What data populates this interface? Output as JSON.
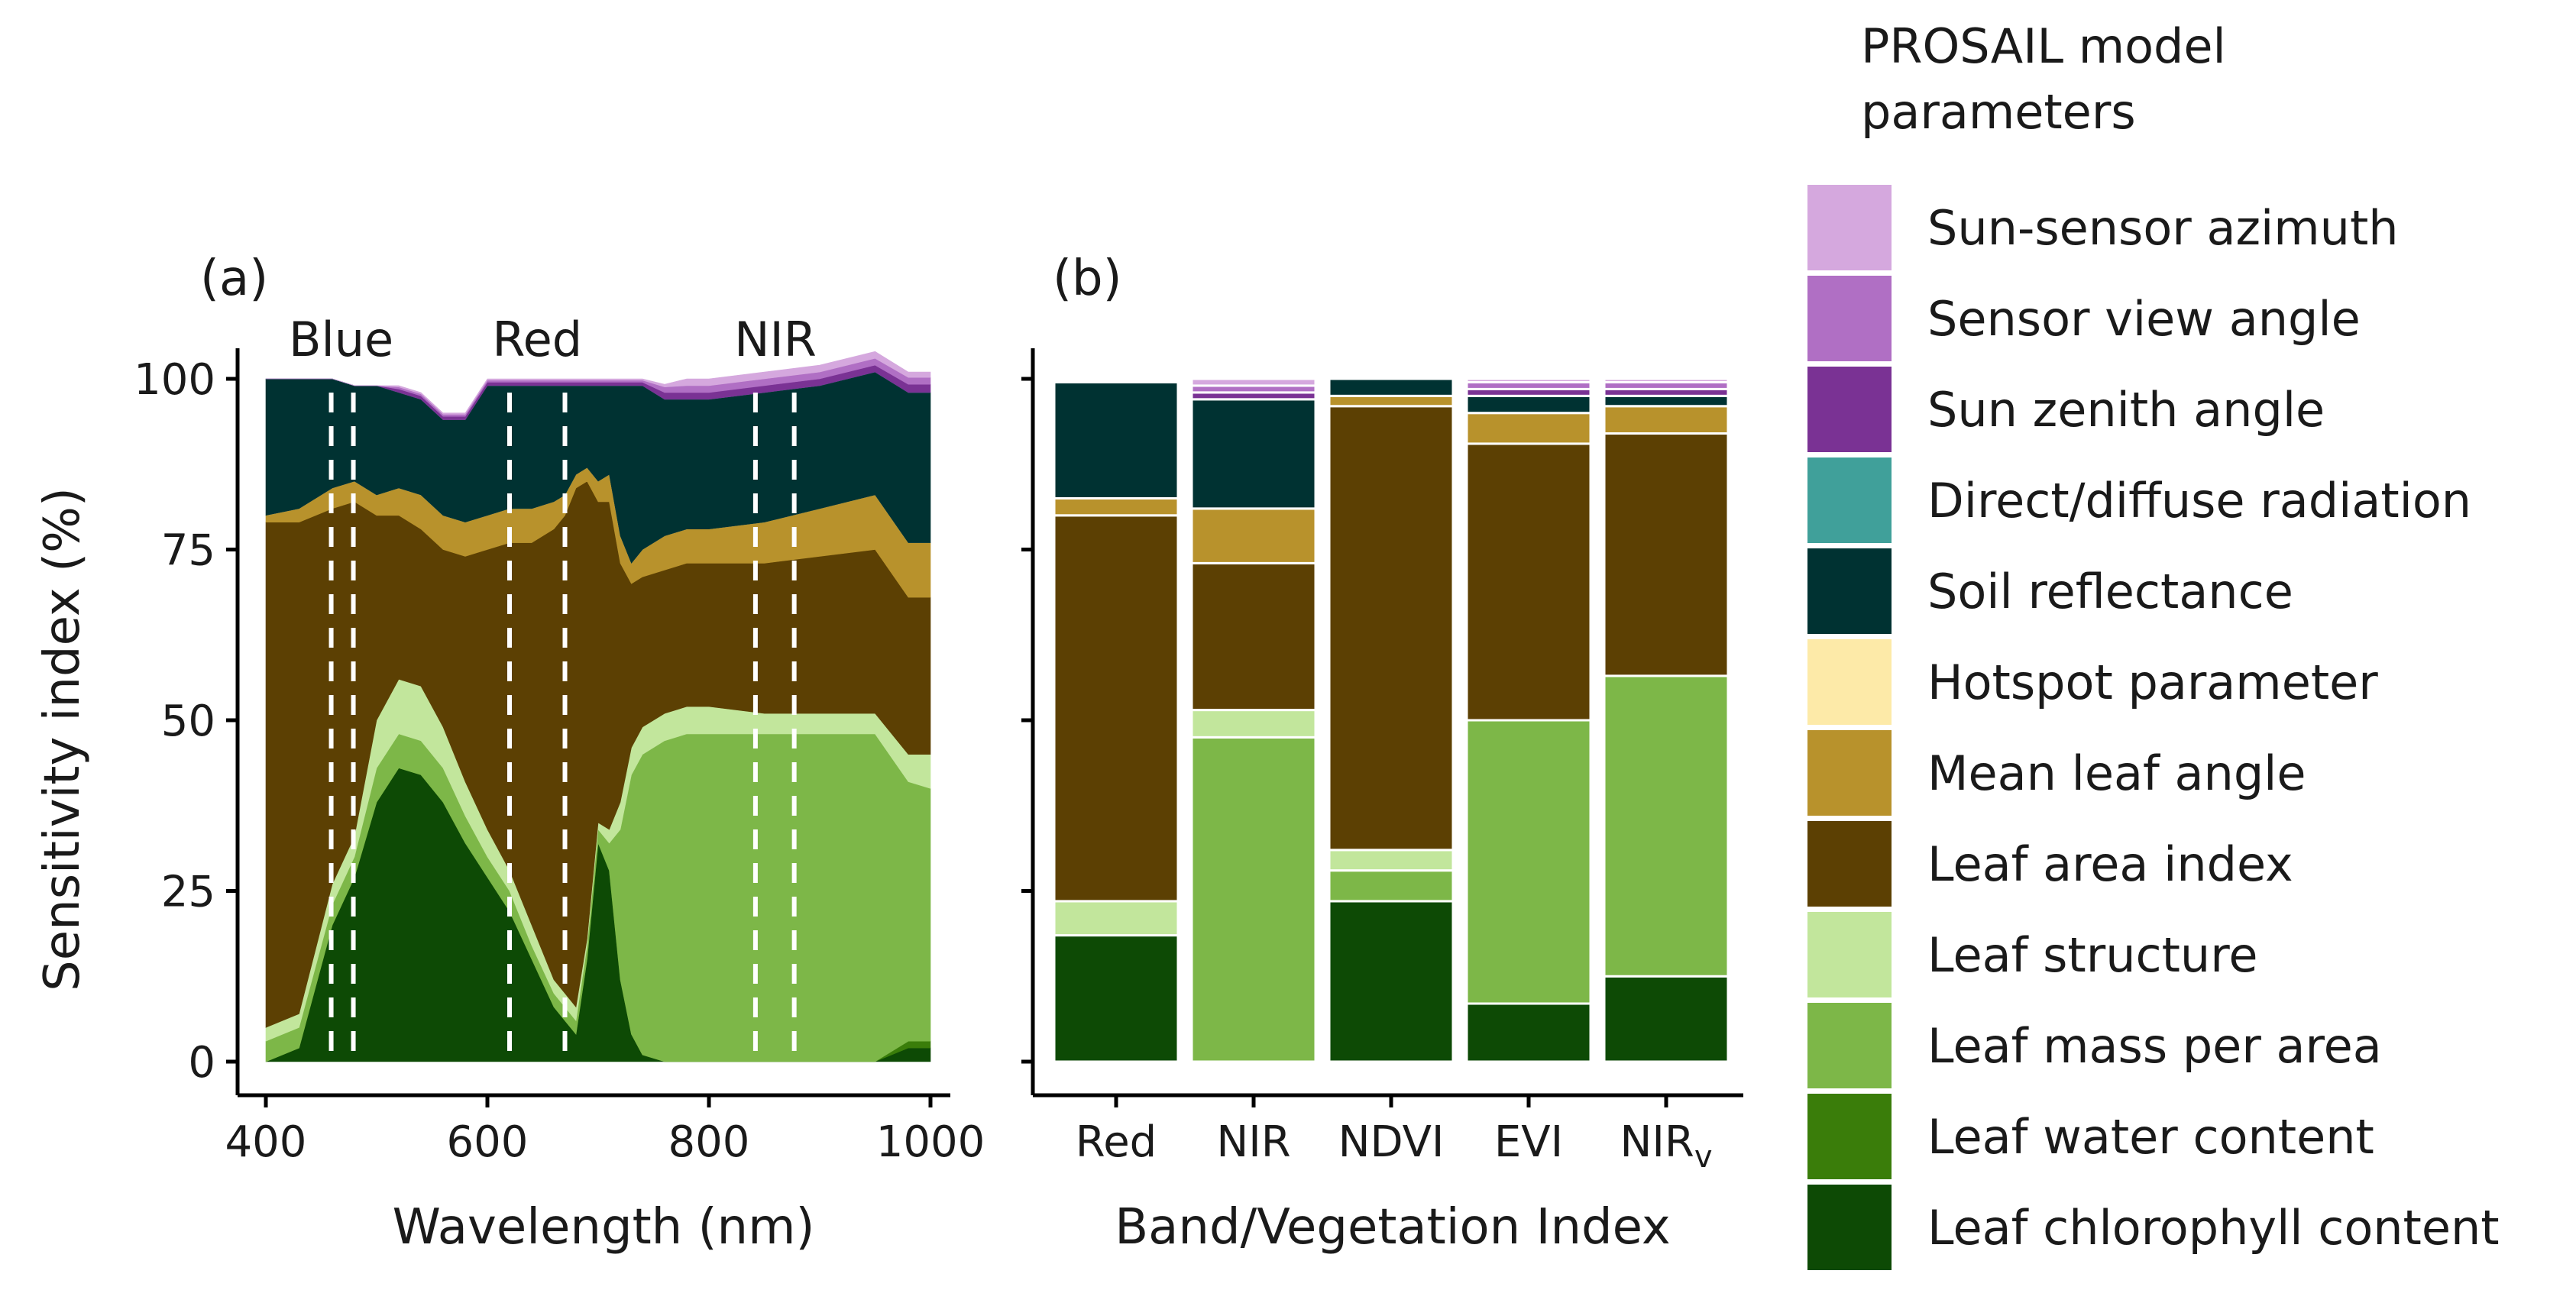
{
  "legend": {
    "title_line1": "PROSAIL model",
    "title_line2": "parameters",
    "items": [
      {
        "key": "sun_sensor_azimuth",
        "label": "Sun-sensor azimuth",
        "color": "#d5a8de"
      },
      {
        "key": "sensor_view_angle",
        "label": "Sensor view angle",
        "color": "#b06fc4"
      },
      {
        "key": "sun_zenith_angle",
        "label": "Sun zenith angle",
        "color": "#7a3294"
      },
      {
        "key": "direct_diffuse_radiation",
        "label": "Direct/diffuse radiation",
        "color": "#40a09a"
      },
      {
        "key": "soil_reflectance",
        "label": "Soil reflectance",
        "color": "#003232"
      },
      {
        "key": "hotspot_parameter",
        "label": "Hotspot parameter",
        "color": "#fdeaa8"
      },
      {
        "key": "mean_leaf_angle",
        "label": "Mean leaf angle",
        "color": "#b8922c"
      },
      {
        "key": "leaf_area_index",
        "label": "Leaf area index",
        "color": "#5c4003"
      },
      {
        "key": "leaf_structure",
        "label": "Leaf structure",
        "color": "#c2e69c"
      },
      {
        "key": "leaf_mass_per_area",
        "label": "Leaf mass per area",
        "color": "#7db748"
      },
      {
        "key": "leaf_water_content",
        "label": "Leaf water content",
        "color": "#3a7d0a"
      },
      {
        "key": "leaf_chlorophyll_content",
        "label": "Leaf chlorophyll content",
        "color": "#0d4a05"
      }
    ]
  },
  "chart_data": [
    {
      "panel": "(a)",
      "type": "area",
      "stacked": true,
      "xlabel": "Wavelength (nm)",
      "ylabel": "Sensitivity index (%)",
      "xlim": [
        400,
        1000
      ],
      "ylim": [
        0,
        100
      ],
      "xticks": [
        "400",
        "600",
        "800",
        "1000"
      ],
      "yticks": [
        "0",
        "25",
        "50",
        "75",
        "100"
      ],
      "band_labels": [
        {
          "label": "Blue",
          "center": 468,
          "lines": [
            459,
            479
          ]
        },
        {
          "label": "Red",
          "center": 645,
          "lines": [
            620,
            670
          ]
        },
        {
          "label": "NIR",
          "center": 860,
          "lines": [
            842,
            877
          ]
        }
      ],
      "x": [
        400,
        430,
        460,
        480,
        500,
        520,
        540,
        560,
        580,
        600,
        620,
        640,
        660,
        670,
        680,
        690,
        700,
        710,
        720,
        730,
        740,
        760,
        780,
        800,
        850,
        900,
        950,
        980,
        1000
      ],
      "series": [
        {
          "key": "leaf_chlorophyll_content",
          "values": [
            0,
            2,
            20,
            27,
            38,
            43,
            42,
            38,
            32,
            27,
            22,
            15,
            8,
            6,
            4,
            15,
            32,
            28,
            12,
            4,
            1,
            0,
            0,
            0,
            0,
            0,
            0,
            2,
            2
          ]
        },
        {
          "key": "leaf_water_content",
          "values": [
            0,
            0,
            0,
            0,
            0,
            0,
            0,
            0,
            0,
            0,
            0,
            0,
            0,
            0,
            0,
            0,
            0,
            0,
            0,
            0,
            0,
            0,
            0,
            0,
            0,
            0,
            0,
            1,
            1
          ]
        },
        {
          "key": "leaf_mass_per_area",
          "values": [
            3,
            3,
            3,
            3,
            5,
            5,
            5,
            5,
            4,
            3,
            3,
            2,
            2,
            2,
            2,
            2,
            2,
            4,
            22,
            38,
            44,
            47,
            48,
            48,
            48,
            48,
            48,
            38,
            37
          ]
        },
        {
          "key": "leaf_structure",
          "values": [
            2,
            2,
            3,
            3,
            7,
            8,
            8,
            6,
            5,
            4,
            3,
            3,
            2,
            2,
            2,
            1,
            1,
            2,
            4,
            4,
            4,
            4,
            4,
            4,
            3,
            3,
            3,
            4,
            5
          ]
        },
        {
          "key": "leaf_area_index",
          "values": [
            74,
            72,
            55,
            49,
            30,
            24,
            23,
            26,
            33,
            41,
            48,
            56,
            66,
            70,
            76,
            67,
            47,
            48,
            35,
            24,
            22,
            21,
            21,
            21,
            22,
            23,
            24,
            23,
            23
          ]
        },
        {
          "key": "mean_leaf_angle",
          "values": [
            1,
            2,
            3,
            3,
            3,
            4,
            5,
            5,
            5,
            5,
            5,
            5,
            4,
            3,
            2,
            2,
            3,
            4,
            4,
            3,
            4,
            5,
            5,
            5,
            6,
            7,
            8,
            8,
            8
          ]
        },
        {
          "key": "hotspot_parameter",
          "values": [
            0,
            0,
            0,
            0,
            0,
            0,
            0,
            0,
            0,
            0,
            0,
            0,
            0,
            0,
            0,
            0,
            0,
            0,
            0,
            0,
            0,
            0,
            0,
            0,
            0,
            0,
            0,
            0,
            0
          ]
        },
        {
          "key": "soil_reflectance",
          "values": [
            20,
            19,
            16,
            14,
            16,
            14,
            14,
            14,
            15,
            19,
            18,
            18,
            17,
            16,
            13,
            12,
            14,
            13,
            22,
            26,
            24,
            20,
            19,
            19,
            19,
            18,
            18,
            22,
            22
          ]
        },
        {
          "key": "direct_diffuse_radiation",
          "values": [
            0,
            0,
            0,
            0,
            0,
            0,
            0,
            0,
            0,
            0,
            0,
            0,
            0,
            0,
            0,
            0,
            0,
            0,
            0,
            0,
            0,
            0,
            0,
            0,
            0,
            0,
            0,
            0,
            0
          ]
        },
        {
          "key": "sun_zenith_angle",
          "values": [
            0,
            0,
            0,
            0,
            0,
            0.5,
            0.5,
            0.5,
            0.5,
            0.5,
            0.5,
            0.5,
            0.5,
            0.5,
            0.5,
            0.5,
            0.5,
            0.5,
            0.5,
            0.5,
            0.5,
            1.0,
            1.0,
            1.0,
            1.0,
            1.0,
            1.0,
            1.2,
            1.2
          ]
        },
        {
          "key": "sensor_view_angle",
          "values": [
            0,
            0,
            0,
            0,
            0,
            0.3,
            0.3,
            0.3,
            0.3,
            0.3,
            0.3,
            0.3,
            0.3,
            0.3,
            0.3,
            0.3,
            0.3,
            0.3,
            0.3,
            0.3,
            0.3,
            0.8,
            1.0,
            1.0,
            1.0,
            1.0,
            1.0,
            1.0,
            1.0
          ]
        },
        {
          "key": "sun_sensor_azimuth",
          "values": [
            0,
            0,
            0,
            0,
            0,
            0.2,
            0.2,
            0.2,
            0.2,
            0.2,
            0.2,
            0.2,
            0.2,
            0.2,
            0.2,
            0.2,
            0.2,
            0.2,
            0.2,
            0.2,
            0.2,
            0.4,
            1.0,
            1.0,
            1.0,
            1.0,
            1.0,
            0.8,
            0.8
          ]
        }
      ]
    },
    {
      "panel": "(b)",
      "type": "bar",
      "stacked": true,
      "xlabel": "Band/Vegetation Index",
      "ylim": [
        0,
        100
      ],
      "categories": [
        {
          "label": "Red",
          "sub": ""
        },
        {
          "label": "NIR",
          "sub": ""
        },
        {
          "label": "NDVI",
          "sub": ""
        },
        {
          "label": "EVI",
          "sub": ""
        },
        {
          "label": "NIR",
          "sub": "v"
        }
      ],
      "series": [
        {
          "key": "leaf_chlorophyll_content",
          "values": [
            18.5,
            0,
            23.5,
            8.5,
            12.5
          ]
        },
        {
          "key": "leaf_water_content",
          "values": [
            0,
            0,
            0,
            0,
            0
          ]
        },
        {
          "key": "leaf_mass_per_area",
          "values": [
            0,
            47.5,
            4.5,
            41.5,
            44.0
          ]
        },
        {
          "key": "leaf_structure",
          "values": [
            5.0,
            4.0,
            3.0,
            0,
            0
          ]
        },
        {
          "key": "leaf_area_index",
          "values": [
            56.5,
            21.5,
            65.0,
            40.5,
            35.5
          ]
        },
        {
          "key": "mean_leaf_angle",
          "values": [
            2.5,
            8.0,
            1.5,
            4.5,
            4.0
          ]
        },
        {
          "key": "hotspot_parameter",
          "values": [
            0,
            0,
            0,
            0,
            0
          ]
        },
        {
          "key": "soil_reflectance",
          "values": [
            17.0,
            16.0,
            2.5,
            2.5,
            1.5
          ]
        },
        {
          "key": "direct_diffuse_radiation",
          "values": [
            0,
            0,
            0,
            0,
            0
          ]
        },
        {
          "key": "sun_zenith_angle",
          "values": [
            0,
            1.0,
            0,
            1.0,
            1.0
          ]
        },
        {
          "key": "sensor_view_angle",
          "values": [
            0,
            1.0,
            0,
            1.0,
            1.0
          ]
        },
        {
          "key": "sun_sensor_azimuth",
          "values": [
            0,
            1.0,
            0,
            0.5,
            0.5
          ]
        }
      ]
    }
  ]
}
